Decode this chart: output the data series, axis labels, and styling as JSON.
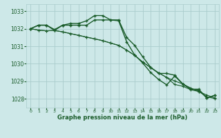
{
  "title": "Graphe pression niveau de la mer (hPa)",
  "background_color": "#cde8e8",
  "grid_color": "#aacccc",
  "line_color": "#1a5c2a",
  "xlim": [
    -0.5,
    23.5
  ],
  "ylim": [
    1027.5,
    1033.4
  ],
  "yticks": [
    1028,
    1029,
    1030,
    1031,
    1032,
    1033
  ],
  "xticks": [
    0,
    1,
    2,
    3,
    4,
    5,
    6,
    7,
    8,
    9,
    10,
    11,
    12,
    13,
    14,
    15,
    16,
    17,
    18,
    19,
    20,
    21,
    22,
    23
  ],
  "series": [
    {
      "y": [
        1032.0,
        1032.2,
        1032.2,
        1031.9,
        1032.2,
        1032.3,
        1032.3,
        1032.45,
        1032.75,
        1032.75,
        1032.5,
        1032.5,
        1031.5,
        1031.05,
        1030.4,
        1029.8,
        1029.45,
        1029.45,
        1029.35,
        1028.85,
        1028.55,
        1028.5,
        1028.05,
        1028.2
      ],
      "lw": 1.0,
      "ms": 3.5
    },
    {
      "y": [
        1032.0,
        1032.2,
        1032.2,
        1031.95,
        1032.2,
        1032.2,
        1032.2,
        1032.2,
        1032.5,
        1032.5,
        1032.5,
        1032.45,
        1031.25,
        1030.5,
        1030.05,
        1029.5,
        1029.1,
        1028.8,
        1029.3,
        1028.85,
        1028.55,
        1028.55,
        1028.05,
        1028.2
      ],
      "lw": 1.0,
      "ms": 3.5
    },
    {
      "y": [
        1032.0,
        1031.92,
        1031.88,
        1031.9,
        1031.82,
        1031.72,
        1031.62,
        1031.52,
        1031.42,
        1031.32,
        1031.18,
        1031.05,
        1030.78,
        1030.48,
        1030.1,
        1029.78,
        1029.48,
        1029.22,
        1029.02,
        1028.85,
        1028.62,
        1028.42,
        1028.22,
        1028.05
      ],
      "lw": 0.8,
      "ms": 2.5
    },
    {
      "y": [
        1032.0,
        1031.92,
        1031.88,
        1031.9,
        1031.82,
        1031.72,
        1031.62,
        1031.52,
        1031.42,
        1031.32,
        1031.18,
        1031.05,
        1030.78,
        1030.48,
        1030.1,
        1029.78,
        1029.48,
        1029.22,
        1028.82,
        1028.72,
        1028.52,
        1028.42,
        1028.12,
        1028.02
      ],
      "lw": 0.8,
      "ms": 2.5
    }
  ]
}
